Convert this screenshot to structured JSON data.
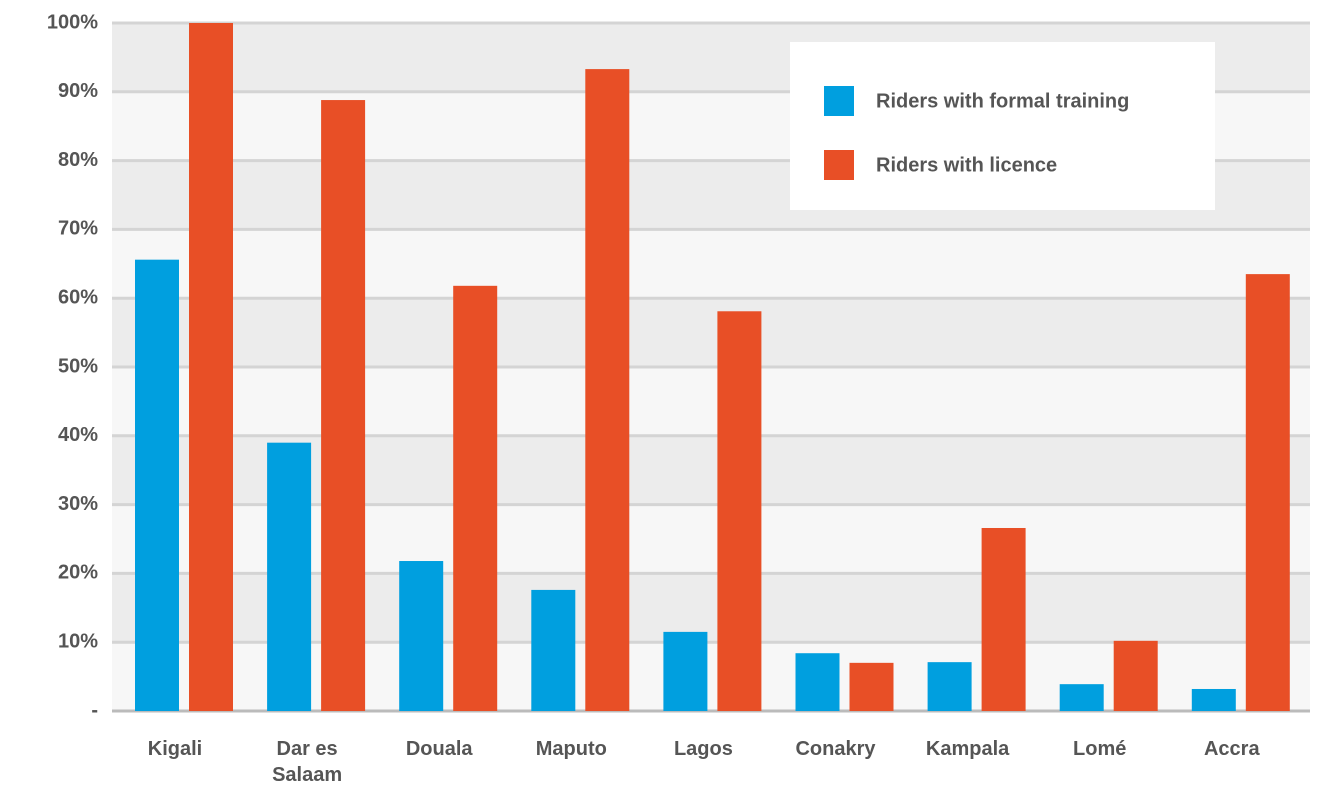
{
  "chart_data": {
    "type": "bar",
    "categories": [
      "Kigali",
      "Dar es Salaam",
      "Douala",
      "Maputo",
      "Lagos",
      "Conakry",
      "Kampala",
      "Lomé",
      "Accra"
    ],
    "series": [
      {
        "name": "Riders with formal training",
        "color": "#009fdf",
        "values": [
          65.6,
          39,
          21.8,
          17.6,
          11.5,
          8.4,
          7.1,
          3.9,
          3.2
        ]
      },
      {
        "name": "Riders with licence",
        "color": "#e84f26",
        "values": [
          100,
          88.8,
          61.8,
          93.3,
          58.1,
          7,
          26.6,
          10.2,
          63.5
        ]
      }
    ],
    "ylim": [
      0,
      100
    ],
    "yticks": [
      {
        "value": 0,
        "label": "-"
      },
      {
        "value": 10,
        "label": "10%"
      },
      {
        "value": 20,
        "label": "20%"
      },
      {
        "value": 30,
        "label": "30%"
      },
      {
        "value": 40,
        "label": "40%"
      },
      {
        "value": 50,
        "label": "50%"
      },
      {
        "value": 60,
        "label": "60%"
      },
      {
        "value": 70,
        "label": "70%"
      },
      {
        "value": 80,
        "label": "80%"
      },
      {
        "value": 90,
        "label": "90%"
      },
      {
        "value": 100,
        "label": "100%"
      }
    ],
    "grid": true,
    "legend": "upper right"
  }
}
